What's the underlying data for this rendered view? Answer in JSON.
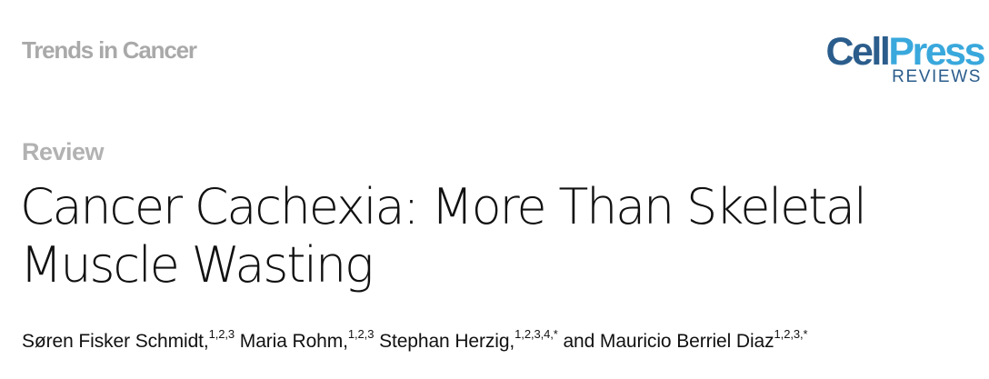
{
  "journal": "Trends in Cancer",
  "logo": {
    "cell": "Cell",
    "press": "Press",
    "sub": "REVIEWS"
  },
  "article_type": "Review",
  "title": "Cancer Cachexia: More Than Skeletal Muscle Wasting",
  "authors": [
    {
      "name": "Søren Fisker Schmidt,",
      "sup": "1,2,3",
      "sep": " "
    },
    {
      "name": "Maria Rohm,",
      "sup": "1,2,3",
      "sep": " "
    },
    {
      "name": "Stephan Herzig,",
      "sup": "1,2,3,4,*",
      "sep": " and "
    },
    {
      "name": "Mauricio Berriel Diaz",
      "sup": "1,2,3,*",
      "sep": ""
    }
  ],
  "colors": {
    "journal": "#a9a9a9",
    "logo_cell": "#2b5d8c",
    "logo_press": "#39a8dc",
    "article_type": "#b2b2b2",
    "text": "#111111"
  }
}
